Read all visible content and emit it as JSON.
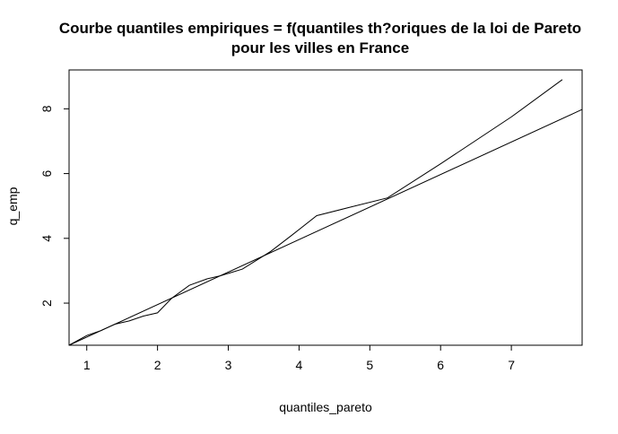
{
  "chart_data": {
    "type": "line",
    "title_lines": [
      "Courbe quantiles empiriques = f(quantiles th?oriques de la loi de Pareto",
      "pour les villes en France"
    ],
    "xlabel": "quantiles_pareto",
    "ylabel": "q_emp",
    "xlim": [
      0.75,
      8.0
    ],
    "ylim": [
      0.7,
      9.2
    ],
    "x_ticks": [
      1,
      2,
      3,
      4,
      5,
      6,
      7
    ],
    "y_ticks": [
      2,
      4,
      6,
      8
    ],
    "grid": false,
    "series": [
      {
        "x": [
          0.75,
          1.0,
          1.2,
          1.4,
          1.6,
          1.8,
          2.0,
          2.2,
          2.45,
          2.7,
          2.9,
          3.2,
          3.6,
          3.9,
          4.25,
          4.7,
          5.25,
          6.0,
          7.0,
          7.72
        ],
        "y": [
          0.7,
          1.0,
          1.15,
          1.35,
          1.45,
          1.6,
          1.7,
          2.15,
          2.55,
          2.75,
          2.85,
          3.05,
          3.6,
          4.1,
          4.7,
          4.95,
          5.25,
          6.3,
          7.75,
          8.9
        ]
      },
      {
        "x": [
          0.75,
          8.0
        ],
        "y": [
          0.7,
          7.98
        ]
      }
    ]
  }
}
